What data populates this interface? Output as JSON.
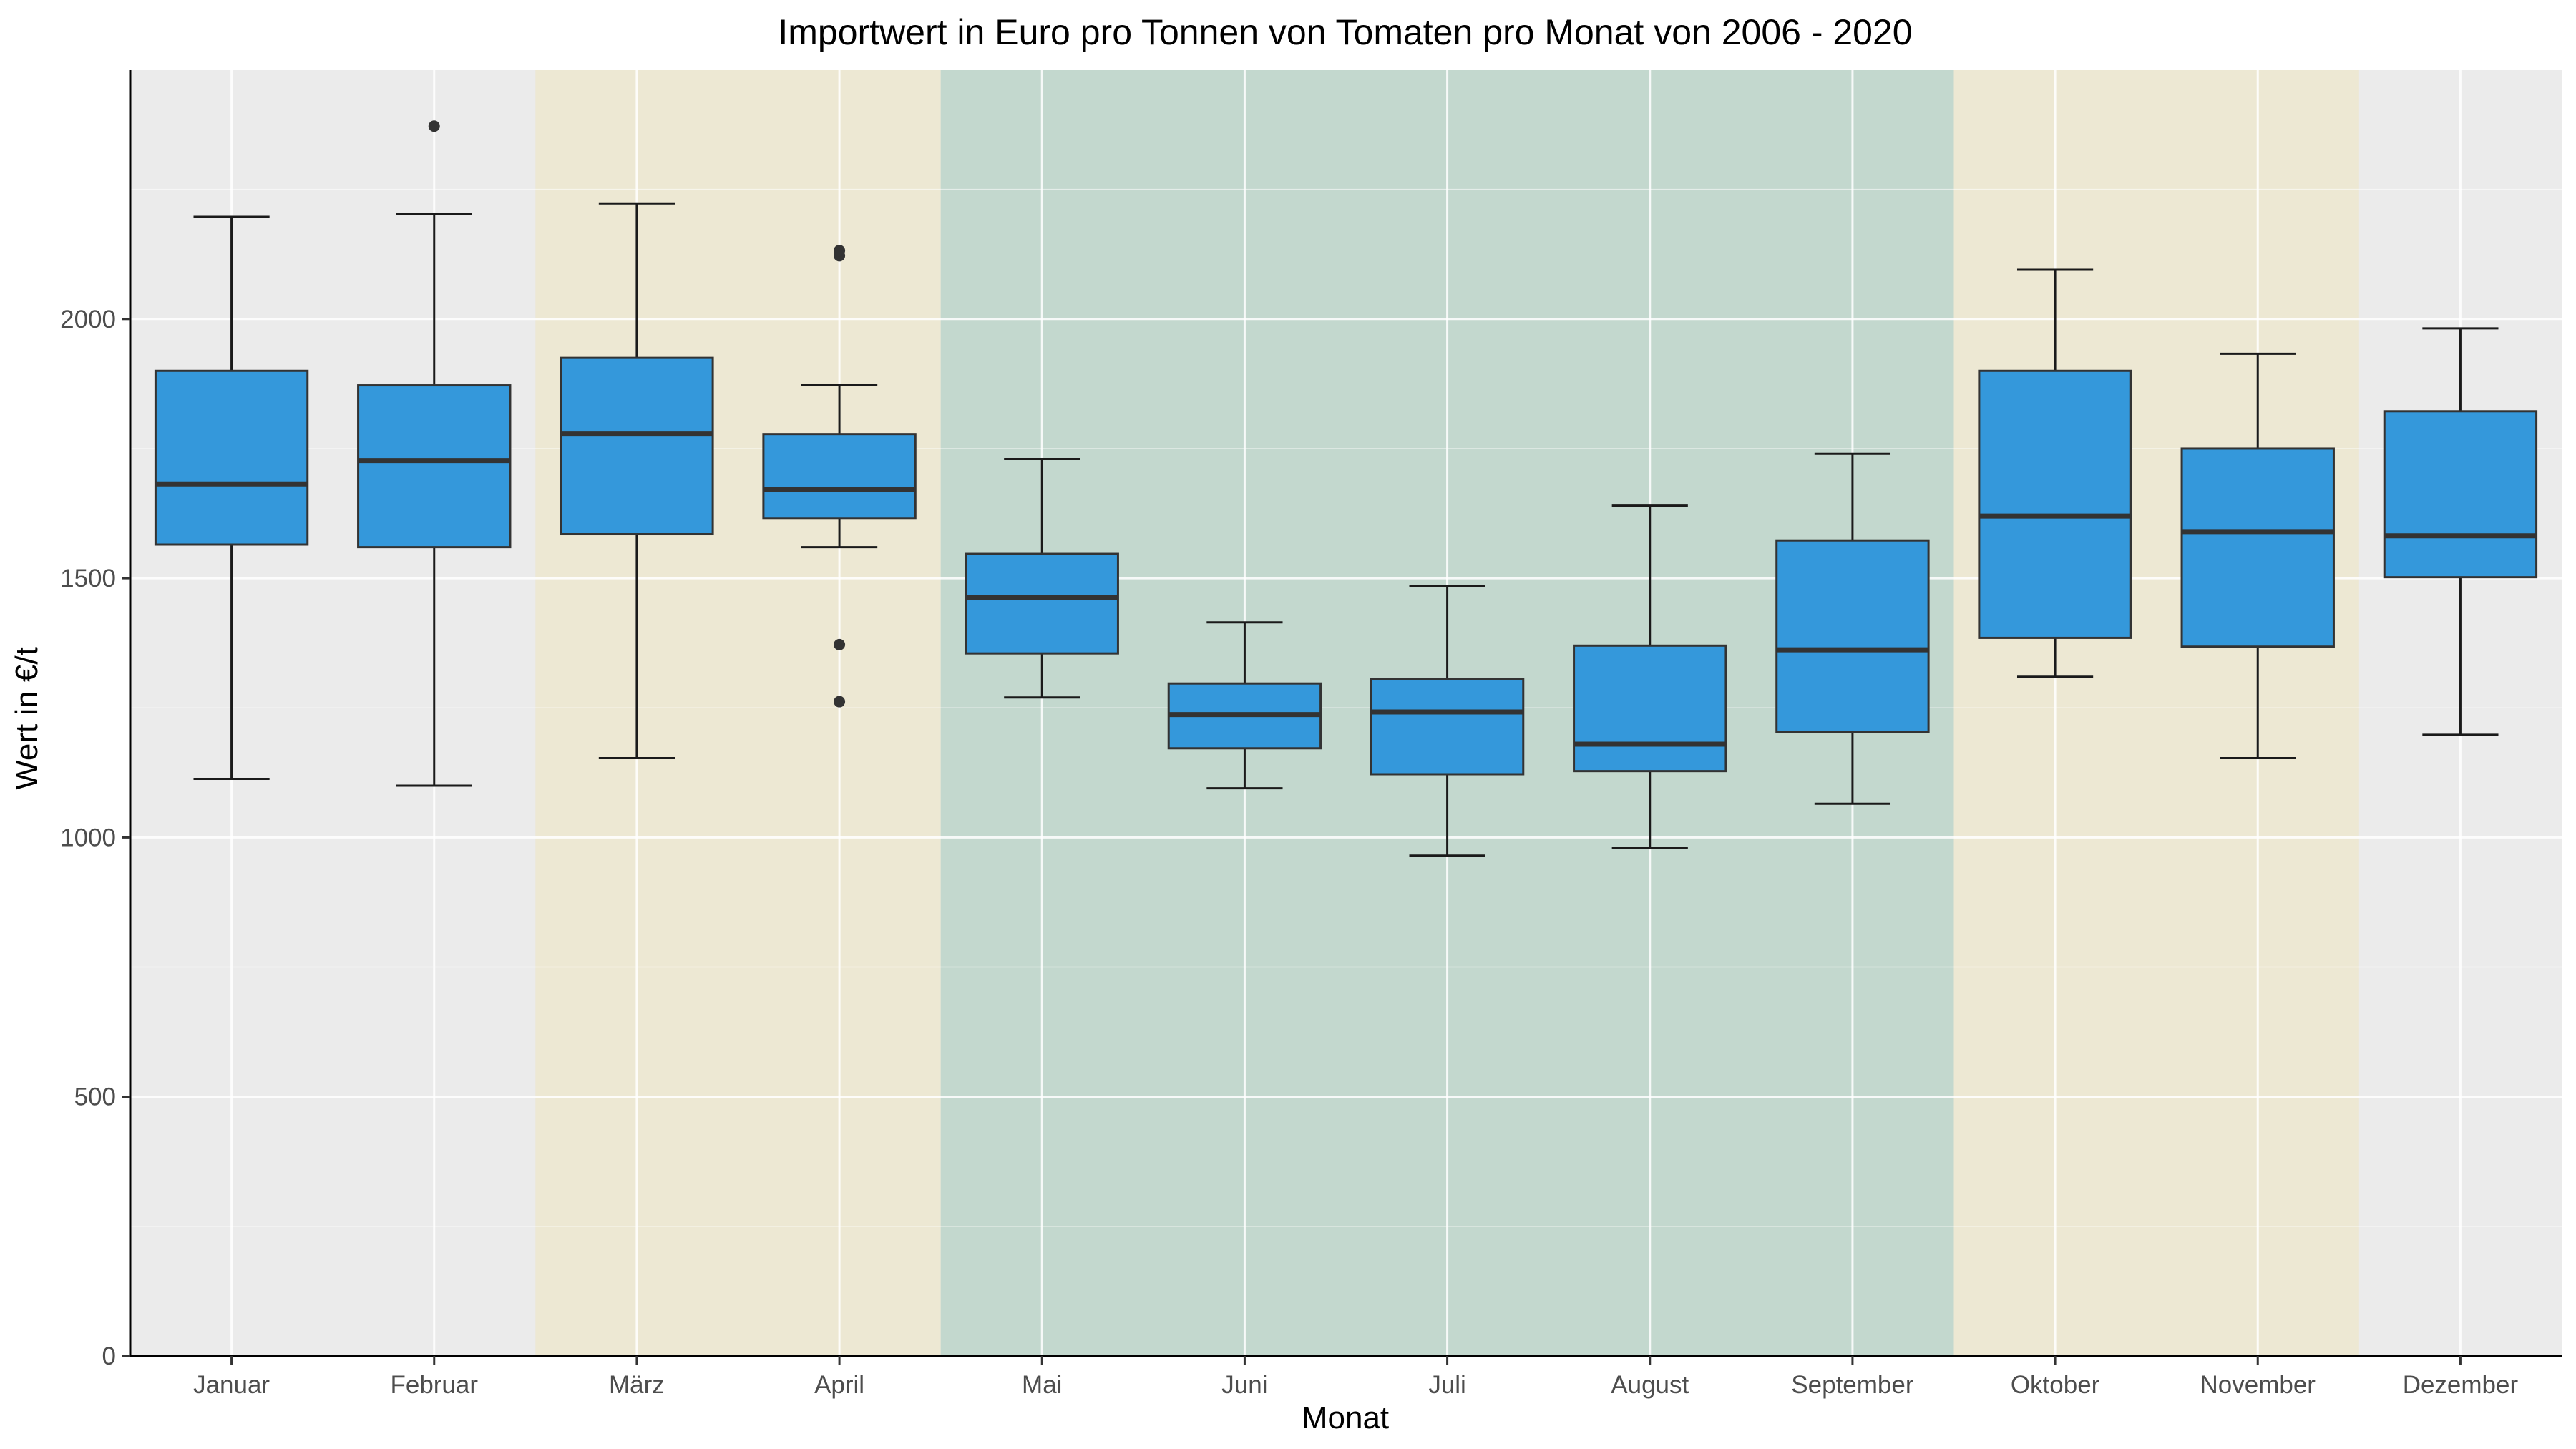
{
  "chart_data": {
    "type": "boxplot",
    "title": "Importwert in Euro pro Tonnen von Tomaten pro Monat von 2006 - 2020",
    "xlabel": "Monat",
    "ylabel": "Wert in €/t",
    "ylim": [
      0,
      2480
    ],
    "yticks": [
      0,
      500,
      1000,
      1500,
      2000
    ],
    "ytick_labels": [
      "0",
      "500",
      "1000",
      "1500",
      "2000"
    ],
    "grid": true,
    "colors": {
      "panel": "#EBEBEB",
      "spring_autumn_band": "#EDE8D3",
      "summer_band": "#C3D8CE",
      "box_fill": "#3498DB",
      "box_line": "#333333",
      "whisker": "#1a1a1a"
    },
    "bands": [
      {
        "season": "spring",
        "from": "März",
        "to": "April",
        "color": "#EDE8D3"
      },
      {
        "season": "summer",
        "from": "Mai",
        "to": "September",
        "color": "#C3D8CE"
      },
      {
        "season": "autumn",
        "from": "Oktober",
        "to": "November",
        "color": "#EDE8D3"
      }
    ],
    "categories": [
      "Januar",
      "Februar",
      "März",
      "April",
      "Mai",
      "Juni",
      "Juli",
      "August",
      "September",
      "Oktober",
      "November",
      "Dezember"
    ],
    "boxes": [
      {
        "month": "Januar",
        "whisker_low": 1113,
        "q1": 1565,
        "median": 1682,
        "q3": 1900,
        "whisker_high": 2197,
        "outliers": []
      },
      {
        "month": "Februar",
        "whisker_low": 1100,
        "q1": 1560,
        "median": 1727,
        "q3": 1872,
        "whisker_high": 2203,
        "outliers": [
          2372
        ]
      },
      {
        "month": "März",
        "whisker_low": 1153,
        "q1": 1585,
        "median": 1778,
        "q3": 1925,
        "whisker_high": 2223,
        "outliers": []
      },
      {
        "month": "April",
        "whisker_low": 1560,
        "q1": 1615,
        "median": 1672,
        "q3": 1778,
        "whisker_high": 1872,
        "outliers": [
          1262,
          1372,
          2122,
          2132
        ]
      },
      {
        "month": "Mai",
        "whisker_low": 1270,
        "q1": 1355,
        "median": 1463,
        "q3": 1547,
        "whisker_high": 1730,
        "outliers": []
      },
      {
        "month": "Juni",
        "whisker_low": 1095,
        "q1": 1172,
        "median": 1237,
        "q3": 1297,
        "whisker_high": 1415,
        "outliers": []
      },
      {
        "month": "Juli",
        "whisker_low": 965,
        "q1": 1122,
        "median": 1242,
        "q3": 1305,
        "whisker_high": 1485,
        "outliers": []
      },
      {
        "month": "August",
        "whisker_low": 980,
        "q1": 1128,
        "median": 1180,
        "q3": 1370,
        "whisker_high": 1640,
        "outliers": []
      },
      {
        "month": "September",
        "whisker_low": 1065,
        "q1": 1203,
        "median": 1362,
        "q3": 1573,
        "whisker_high": 1740,
        "outliers": []
      },
      {
        "month": "Oktober",
        "whisker_low": 1310,
        "q1": 1385,
        "median": 1620,
        "q3": 1900,
        "whisker_high": 2095,
        "outliers": []
      },
      {
        "month": "November",
        "whisker_low": 1153,
        "q1": 1368,
        "median": 1590,
        "q3": 1750,
        "whisker_high": 1933,
        "outliers": []
      },
      {
        "month": "Dezember",
        "whisker_low": 1198,
        "q1": 1502,
        "median": 1582,
        "q3": 1822,
        "whisker_high": 1982,
        "outliers": []
      }
    ]
  }
}
